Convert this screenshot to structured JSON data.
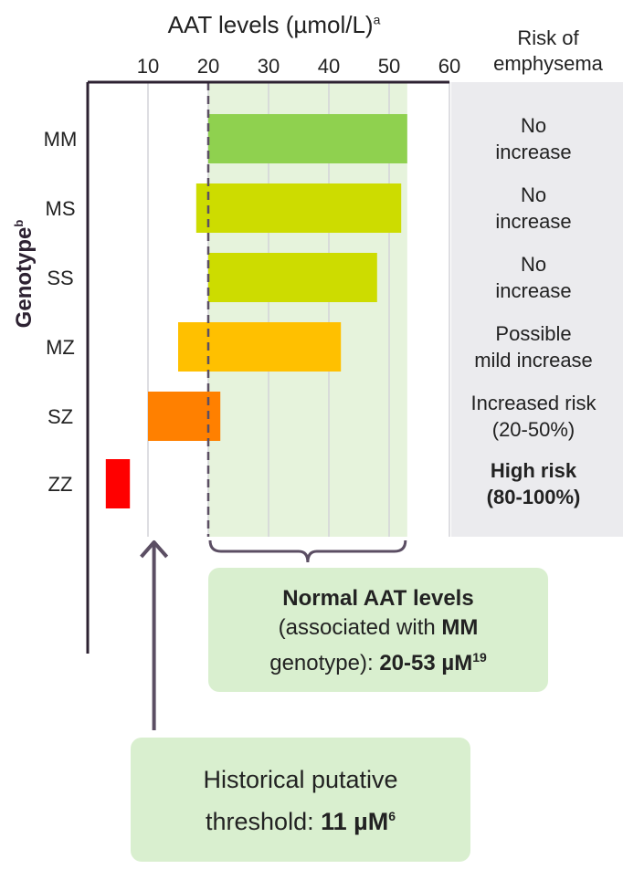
{
  "chart_data": {
    "type": "bar",
    "orientation": "horizontal",
    "title": "AAT levels (µmol/L)",
    "title_sup": "a",
    "xticks": [
      10,
      20,
      30,
      40,
      50,
      60
    ],
    "xlim": [
      0,
      60
    ],
    "ylabel": "Genotype",
    "ylabel_sup": "b",
    "normal_range": [
      20,
      53
    ],
    "threshold": 11,
    "categories": [
      "MM",
      "MS",
      "SS",
      "MZ",
      "SZ",
      "ZZ"
    ],
    "ranges": [
      {
        "genotype": "MM",
        "low": 20,
        "high": 53,
        "color": "#8fd14f"
      },
      {
        "genotype": "MS",
        "low": 18,
        "high": 52,
        "color": "#cddc00"
      },
      {
        "genotype": "SS",
        "low": 20,
        "high": 48,
        "color": "#cddc00"
      },
      {
        "genotype": "MZ",
        "low": 15,
        "high": 42,
        "color": "#ffc000"
      },
      {
        "genotype": "SZ",
        "low": 10,
        "high": 22,
        "color": "#ff8000"
      },
      {
        "genotype": "ZZ",
        "low": 3,
        "high": 7,
        "color": "#ff0000"
      }
    ],
    "risk_header": "Risk of emphysema",
    "risk": [
      {
        "line1": "No",
        "line2": "increase",
        "bold": false
      },
      {
        "line1": "No",
        "line2": "increase",
        "bold": false
      },
      {
        "line1": "No",
        "line2": "increase",
        "bold": false
      },
      {
        "line1": "Possible",
        "line2": "mild increase",
        "bold": false
      },
      {
        "line1": "Increased risk",
        "line2": "(20-50%)",
        "bold": false
      },
      {
        "line1": "High risk",
        "line2": "(80-100%)",
        "bold": true
      }
    ]
  },
  "callouts": {
    "normal": {
      "title": "Normal AAT levels",
      "pre": "(associated with ",
      "genotype": "MM",
      "mid": "genotype): ",
      "range": "20-53 µM",
      "ref": "19"
    },
    "historical": {
      "line1": "Historical putative",
      "pre": "threshold: ",
      "value": "11 µM",
      "ref": "6"
    }
  },
  "colors": {
    "normal_band": "#e6f3dc",
    "risk_panel": "#ebebee",
    "axis": "#2d2232",
    "arrow": "#5b4e63"
  }
}
